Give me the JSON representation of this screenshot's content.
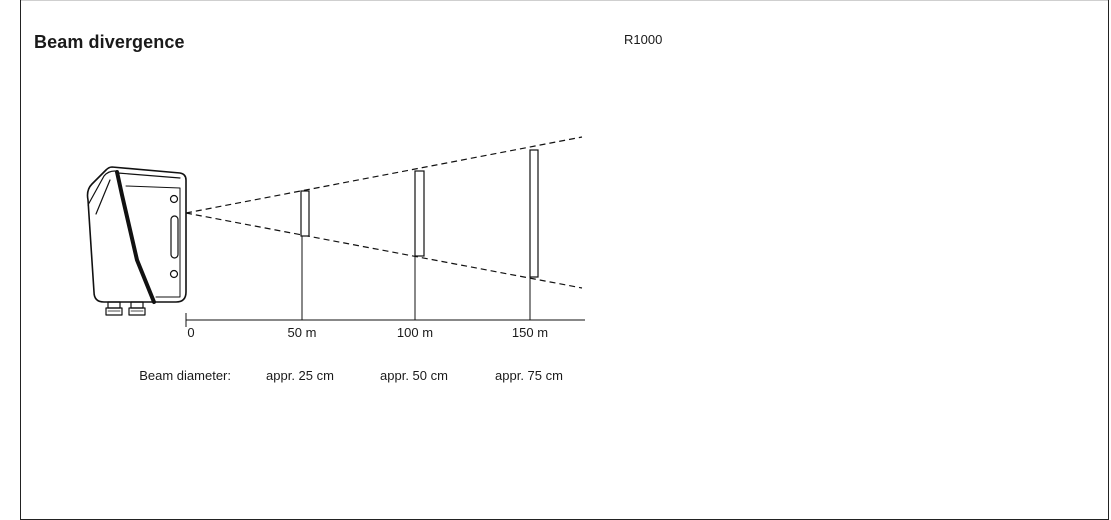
{
  "header": {
    "title": "Beam divergence",
    "model": "R1000"
  },
  "axis": {
    "ticks": [
      "0",
      "50 m",
      "100 m",
      "150 m"
    ]
  },
  "beam": {
    "diameter_label": "Beam diameter:",
    "diameters": [
      "appr. 25 cm",
      "appr. 50 cm",
      "appr. 75 cm"
    ]
  }
}
